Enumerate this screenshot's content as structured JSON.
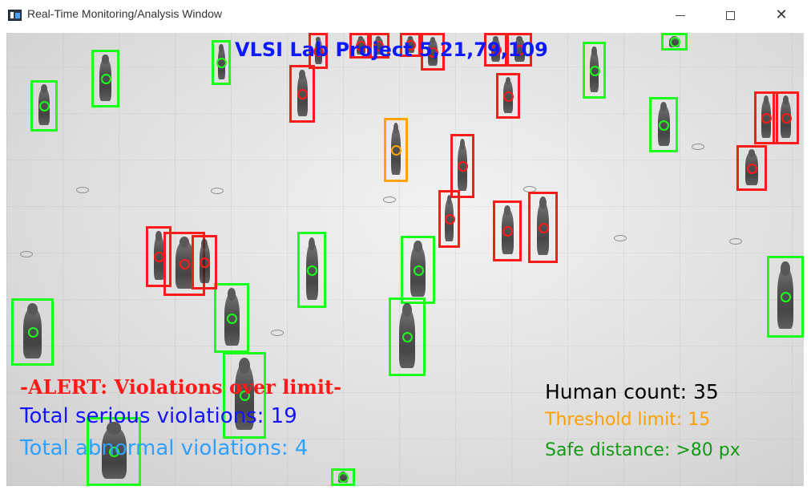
{
  "window": {
    "title": "Real-Time Monitoring/Analysis Window",
    "app_icon": "video-window-icon",
    "controls": {
      "minimize_icon": "minimize-icon",
      "maximize_icon": "maximize-icon",
      "close_icon": "close-icon",
      "close_glyph": "✕"
    }
  },
  "overlay": {
    "project_title": "VLSI Lab Project 5,21,79,109",
    "alert": "-ALERT: Violations over limit-",
    "serious_violations": "Total serious violations: 19",
    "abnormal_violations": "Total abnormal violations: 4",
    "human_count": "Human count: 35",
    "threshold_limit": "Threshold limit: 15",
    "safe_distance": "Safe distance: >80 px"
  },
  "legend_colors": {
    "safe": "#19ff19",
    "serious": "#ff1a1a",
    "abnormal": "#ffa500",
    "title": "#0d1aff",
    "serious_text": "#1414ff",
    "abnormal_text": "#2ea0ff",
    "safe_text": "#139a13"
  },
  "detections_summary": {
    "safe_box_color_name": "green",
    "serious_box_color_name": "red",
    "abnormal_box_color_name": "orange"
  }
}
